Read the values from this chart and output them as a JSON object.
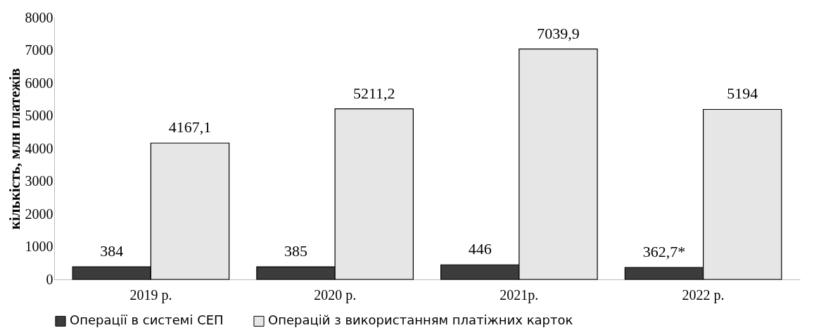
{
  "chart_data": {
    "type": "bar",
    "ylabel": "кількість, млн платежів",
    "categories": [
      "2019 р.",
      "2020 р.",
      "2021р.",
      "2022 р."
    ],
    "series": [
      {
        "name": "Операції в системі СЕП",
        "color": "#3c3c3c",
        "values": [
          384,
          385,
          446,
          362.7
        ],
        "value_labels": [
          "384",
          "385",
          "446",
          "362,7*"
        ]
      },
      {
        "name": "Операцій з використанням платіжних карток",
        "color": "#e6e6e6",
        "values": [
          4167.1,
          5211.2,
          7039.9,
          5194
        ],
        "value_labels": [
          "4167,1",
          "5211,2",
          "7039,9",
          "5194"
        ]
      }
    ],
    "ylim": [
      0,
      8000
    ],
    "yticks": [
      0,
      1000,
      2000,
      3000,
      4000,
      5000,
      6000,
      7000,
      8000
    ],
    "grid": false,
    "legend": "bottom"
  }
}
